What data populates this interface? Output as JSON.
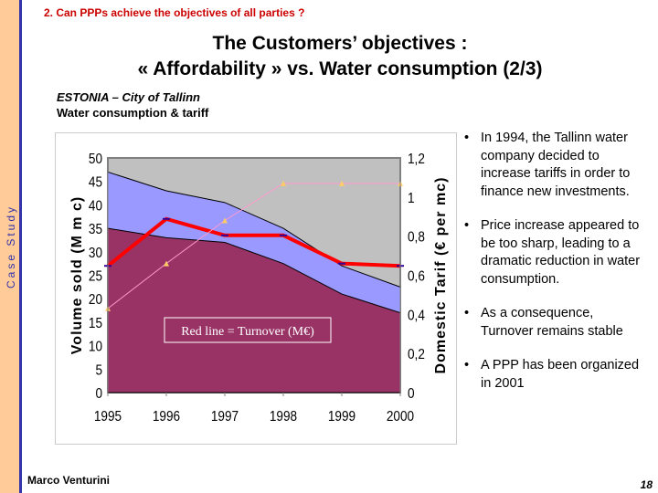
{
  "side_label": "Case Study",
  "section": "2.  Can PPPs achieve the objectives of all parties ?",
  "title": {
    "line1": "The Customers’ objectives :",
    "line2": "« Affordability » vs. Water consumption (2/3)"
  },
  "subtitle": {
    "line1": "ESTONIA – City of Tallinn",
    "line2": "Water consumption & tariff"
  },
  "chart_data": {
    "type": "area",
    "categories": [
      "1995",
      "1996",
      "1997",
      "1998",
      "1999",
      "2000"
    ],
    "series": [
      {
        "type": "area",
        "axis": "left",
        "values": [
          35,
          33,
          32,
          27.5,
          21,
          17
        ],
        "color": "#993366"
      },
      {
        "type": "area",
        "axis": "left",
        "values": [
          47,
          43,
          40.5,
          35,
          27,
          22.5
        ],
        "color": "#9999FF"
      },
      {
        "type": "line",
        "axis": "left",
        "name": "Turnover (M€)",
        "values": [
          27,
          37,
          33.5,
          33.5,
          27.5,
          27
        ],
        "color": "#FF0000"
      },
      {
        "type": "line",
        "axis": "right",
        "values": [
          0.43,
          0.66,
          0.88,
          1.07,
          1.07,
          1.07
        ],
        "color": "#FF99CC"
      }
    ],
    "ylabel": "Volume sold (M m c)",
    "ylim": [
      0,
      50
    ],
    "yticks": [
      "0",
      "5",
      "10",
      "15",
      "20",
      "25",
      "30",
      "35",
      "40",
      "45",
      "50"
    ],
    "y2label": "Domestic Tarif (€ per mc)",
    "y2lim": [
      0,
      1.2
    ],
    "y2ticks": [
      "0",
      "0,2",
      "0,4",
      "0,6",
      "0,8",
      "1",
      "1,2"
    ],
    "annotation": "Red line = Turnover (M€)",
    "plot_background": "#C0C0C0"
  },
  "bullets": [
    "In 1994, the Tallinn water company decided to increase tariffs in order to finance new investments.",
    "Price increase appeared to be too sharp, leading to a dramatic reduction in water consumption.",
    "As a consequence, Turnover remains stable",
    "A PPP has been organized in 2001"
  ],
  "footer": {
    "author": "Marco Venturini",
    "page": "18"
  }
}
